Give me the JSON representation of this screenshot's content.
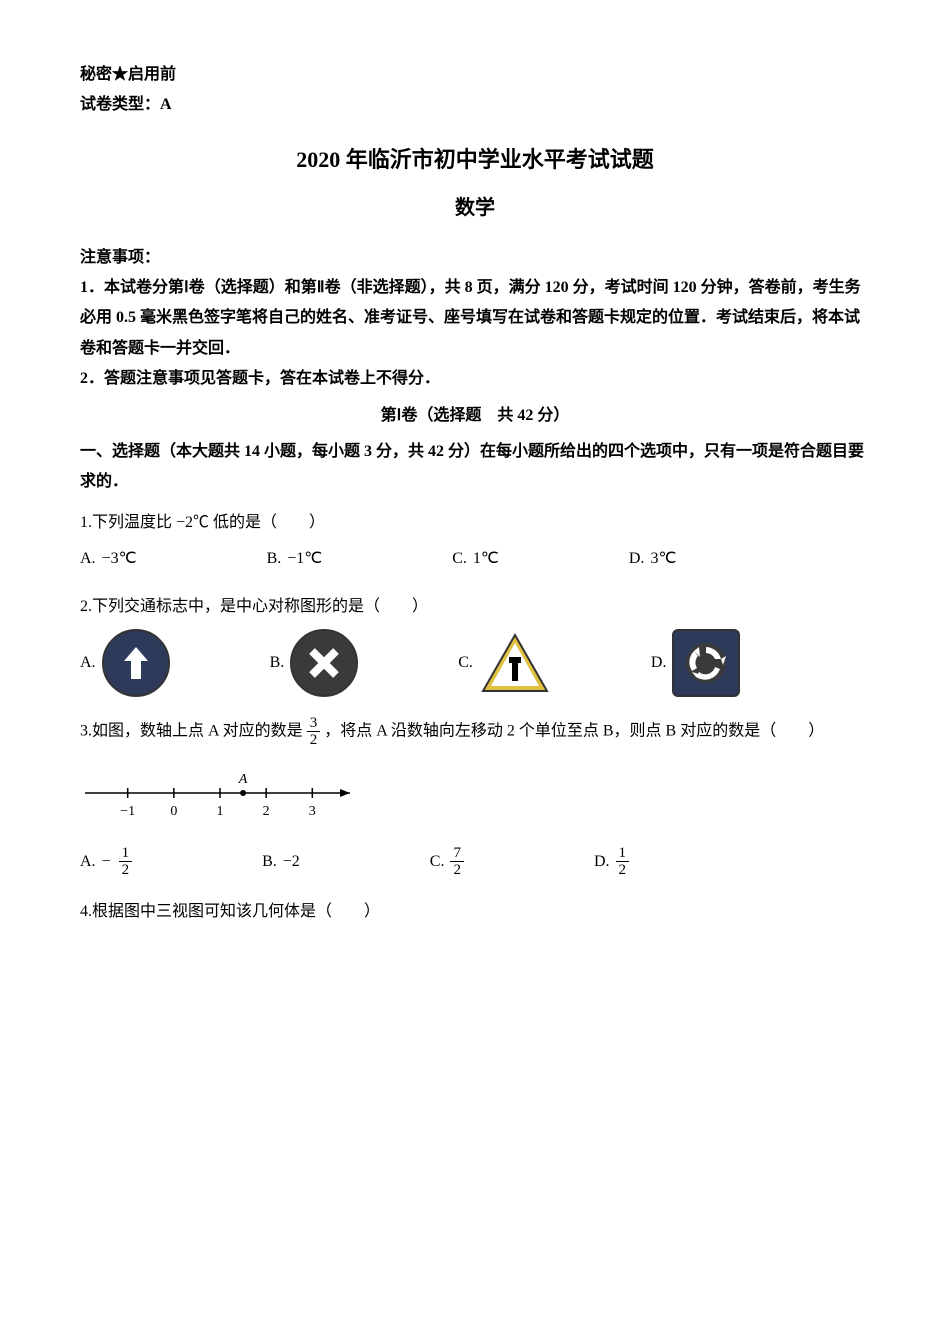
{
  "header": {
    "confidential": "秘密★启用前",
    "paper_type": "试卷类型：A"
  },
  "title": {
    "main": "2020 年临沂市初中学业水平考试试题",
    "subject": "数学"
  },
  "instructions": {
    "heading": "注意事项：",
    "item1": "1．本试卷分第Ⅰ卷（选择题）和第Ⅱ卷（非选择题），共 8 页，满分 120 分，考试时间 120 分钟，答卷前，考生务必用 0.5 毫米黑色签字笔将自己的姓名、准考证号、座号填写在试卷和答题卡规定的位置．考试结束后，将本试卷和答题卡一并交回．",
    "item2": "2．答题注意事项见答题卡，答在本试卷上不得分．"
  },
  "section1": {
    "header": "第Ⅰ卷（选择题　共 42 分）",
    "intro": "一、选择题（本大题共 14 小题，每小题 3 分，共 42 分）在每小题所给出的四个选项中，只有一项是符合题目要求的．"
  },
  "q1": {
    "stem_prefix": "1.下列温度比",
    "stem_value": "−2℃",
    "stem_suffix": "低的是（　　）",
    "A": "−3℃",
    "B": "−1℃",
    "C": "1℃",
    "D": "3℃",
    "label_A": "A.",
    "label_B": "B.",
    "label_C": "C.",
    "label_D": "D."
  },
  "q2": {
    "stem": "2.下列交通标志中，是中心对称图形的是（　　）",
    "label_A": "A.",
    "label_B": "B.",
    "label_C": "C.",
    "label_D": "D.",
    "icons": {
      "A": {
        "type": "circle-up-arrow",
        "bg": "#2e3a5a",
        "fg": "#ffffff",
        "border": "#1a1a1a"
      },
      "B": {
        "type": "circle-x",
        "bg": "#3a3a3a",
        "fg": "#ffffff",
        "border": "#1a1a1a"
      },
      "C": {
        "type": "triangle-t",
        "bg": "#ffffff",
        "fg": "#000000",
        "border": "#333333"
      },
      "D": {
        "type": "square-rotary",
        "bg": "#2e3a5a",
        "fg": "#ffffff",
        "border": "#1a1a1a"
      }
    }
  },
  "q3": {
    "stem_prefix": "3.如图，数轴上点 A 对应的数是",
    "frac_num": "3",
    "frac_den": "2",
    "stem_suffix": "，将点 A 沿数轴向左移动 2 个单位至点 B，则点 B 对应的数是（　　）",
    "numberline": {
      "ticks": [
        "−1",
        "0",
        "1",
        "2",
        "3"
      ],
      "point_label": "A",
      "point_x": 1.5,
      "xmin": -1.6,
      "xmax": 3.6
    },
    "options": {
      "A": {
        "sign": "−",
        "num": "1",
        "den": "2"
      },
      "B": {
        "plain": "−2"
      },
      "C": {
        "num": "7",
        "den": "2"
      },
      "D": {
        "num": "1",
        "den": "2"
      }
    },
    "label_A": "A.",
    "label_B": "B.",
    "label_C": "C.",
    "label_D": "D."
  },
  "q4": {
    "stem": "4.根据图中三视图可知该几何体是（　　）"
  }
}
